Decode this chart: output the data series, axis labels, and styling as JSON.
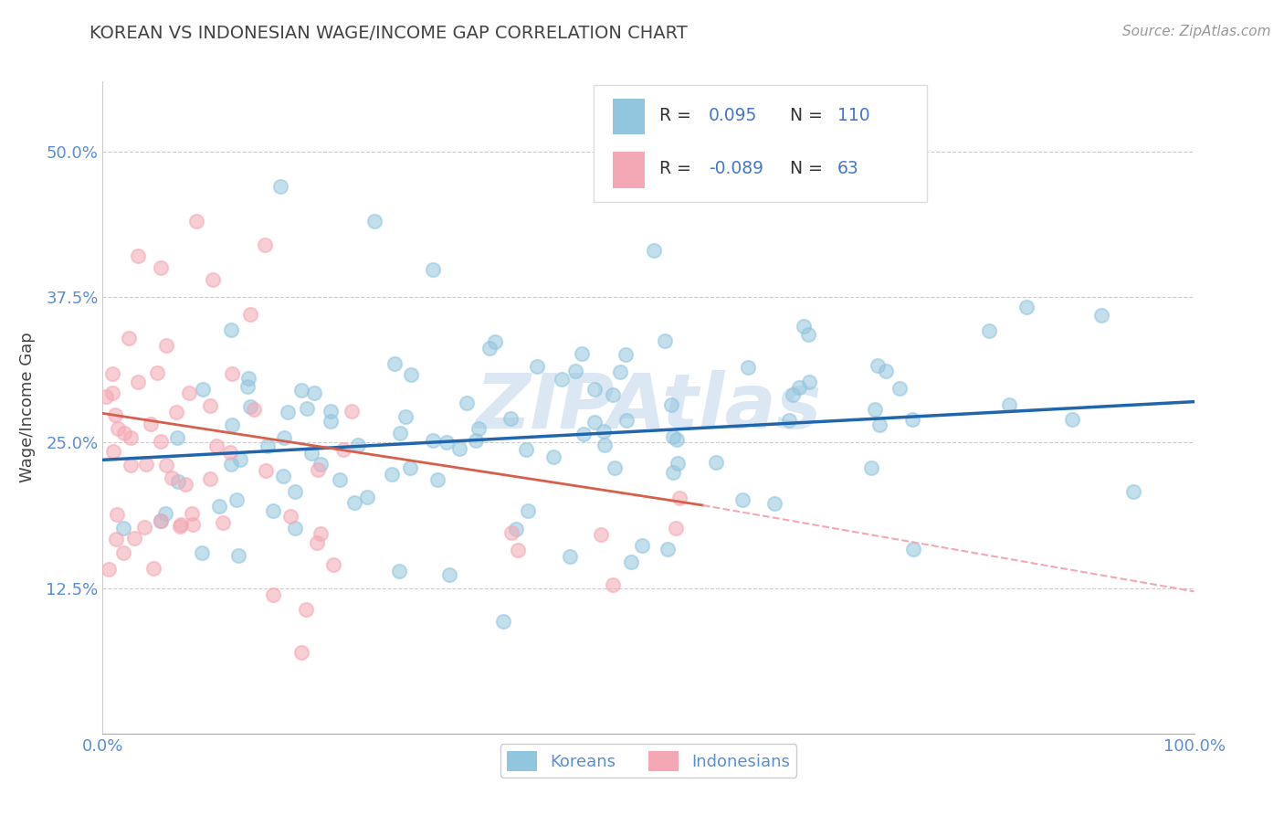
{
  "title": "KOREAN VS INDONESIAN WAGE/INCOME GAP CORRELATION CHART",
  "source_text": "Source: ZipAtlas.com",
  "ylabel": "Wage/Income Gap",
  "xlim": [
    0.0,
    1.0
  ],
  "ylim": [
    0.0,
    0.56
  ],
  "yticks": [
    0.125,
    0.25,
    0.375,
    0.5
  ],
  "ytick_labels": [
    "12.5%",
    "25.0%",
    "37.5%",
    "50.0%"
  ],
  "xticks": [
    0.0,
    1.0
  ],
  "xtick_labels": [
    "0.0%",
    "100.0%"
  ],
  "blue_R": 0.095,
  "blue_N": 110,
  "pink_R": -0.089,
  "pink_N": 63,
  "blue_color": "#92c5de",
  "pink_color": "#f4a7b4",
  "blue_line_color": "#2166ac",
  "pink_line_solid_color": "#d6604d",
  "pink_line_dash_color": "#f4a7b4",
  "watermark": "ZIPAtlas",
  "watermark_color": "#c5d8ee",
  "background_color": "#ffffff",
  "grid_color": "#cccccc",
  "title_color": "#444444",
  "axis_label_color": "#5b8dd9",
  "legend_color": "#4477cc",
  "blue_trend_x0": 0.0,
  "blue_trend_y0": 0.235,
  "blue_trend_x1": 1.0,
  "blue_trend_y1": 0.285,
  "pink_trend_x0": 0.0,
  "pink_trend_y0": 0.275,
  "pink_trend_solid_x1": 0.55,
  "pink_trend_solid_y1": 0.196,
  "pink_trend_dash_x1": 1.0,
  "pink_trend_dash_y1": 0.122
}
